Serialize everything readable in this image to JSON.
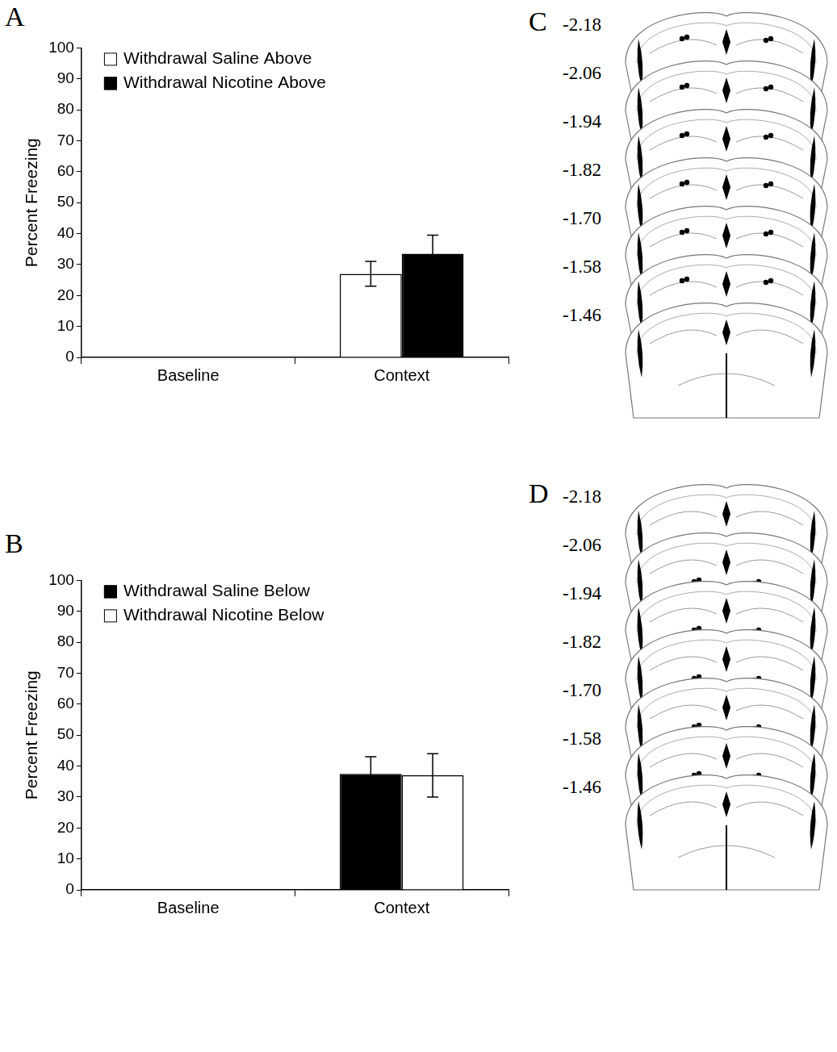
{
  "chart_data": [
    {
      "panel": "A",
      "type": "bar",
      "categories": [
        "Baseline",
        "Context"
      ],
      "y_label": "Percent Freezing",
      "ylim": [
        0,
        100
      ],
      "yticks": [
        0,
        10,
        20,
        30,
        40,
        50,
        60,
        70,
        80,
        90,
        100
      ],
      "grid": false,
      "legend": "upper left",
      "series": [
        {
          "name": "Withdrawal Saline Above",
          "color": "#ffffff",
          "values": [
            0,
            27
          ],
          "errors": [
            0,
            4
          ]
        },
        {
          "name": "Withdrawal Nicotine Above",
          "color": "#000000",
          "values": [
            0,
            33.5
          ],
          "errors": [
            0,
            6
          ]
        }
      ]
    },
    {
      "panel": "B",
      "type": "bar",
      "categories": [
        "Baseline",
        "Context"
      ],
      "y_label": "Percent Freezing",
      "ylim": [
        0,
        100
      ],
      "yticks": [
        0,
        10,
        20,
        30,
        40,
        50,
        60,
        70,
        80,
        90,
        100
      ],
      "grid": false,
      "legend": "upper left",
      "series": [
        {
          "name": "Withdrawal Saline Below",
          "color": "#000000",
          "values": [
            0,
            37.5
          ],
          "errors": [
            0,
            5.5
          ]
        },
        {
          "name": "Withdrawal Nicotine Below",
          "color": "#ffffff",
          "values": [
            0,
            37
          ],
          "errors": [
            0,
            7
          ]
        }
      ]
    }
  ],
  "sections": [
    {
      "panel": "C",
      "levels": [
        "-2.18",
        "-2.06",
        "-1.94",
        "-1.82",
        "-1.70",
        "-1.58",
        "-1.46"
      ]
    },
    {
      "panel": "D",
      "levels": [
        "-2.18",
        "-2.06",
        "-1.94",
        "-1.82",
        "-1.70",
        "-1.58",
        "-1.46"
      ]
    }
  ]
}
